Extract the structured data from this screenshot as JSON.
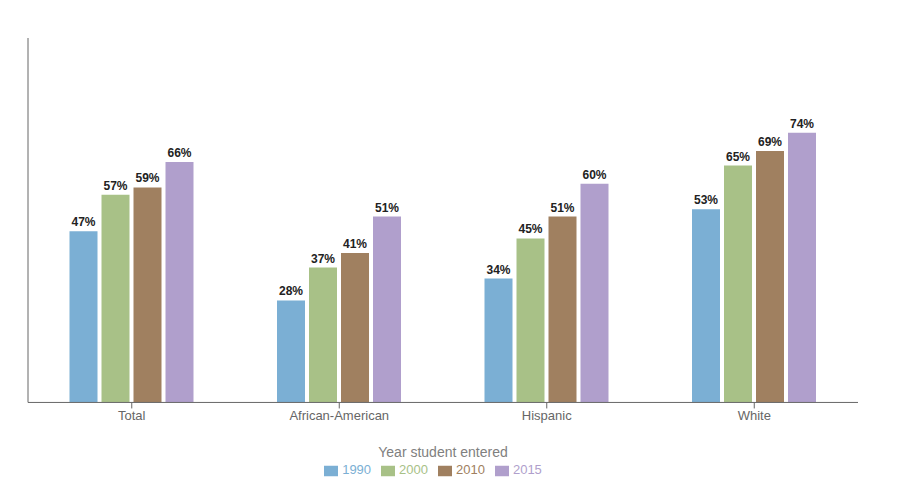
{
  "chart_data": {
    "type": "bar",
    "xlabel": "Year student entered",
    "categories": [
      "Total",
      "African-American",
      "Hispanic",
      "White"
    ],
    "series": [
      {
        "name": "1990",
        "color": "#7bafd4",
        "values": [
          47,
          28,
          34,
          53
        ],
        "value_labels": [
          "47%",
          "28%",
          "34%",
          "53%"
        ]
      },
      {
        "name": "2000",
        "color": "#a8c187",
        "values": [
          57,
          37,
          45,
          65
        ],
        "value_labels": [
          "57%",
          "37%",
          "45%",
          "65%"
        ]
      },
      {
        "name": "2010",
        "color": "#a08060",
        "values": [
          59,
          41,
          51,
          69
        ],
        "value_labels": [
          "59%",
          "41%",
          "51%",
          "69%"
        ]
      },
      {
        "name": "2015",
        "color": "#b09fcc",
        "values": [
          66,
          51,
          60,
          74
        ],
        "value_labels": [
          "66%",
          "51%",
          "60%",
          "74%"
        ]
      }
    ],
    "ylim": [
      0,
      100
    ],
    "data_labels": true,
    "tick_labels": "x",
    "legend": "bottom",
    "grid": false
  }
}
